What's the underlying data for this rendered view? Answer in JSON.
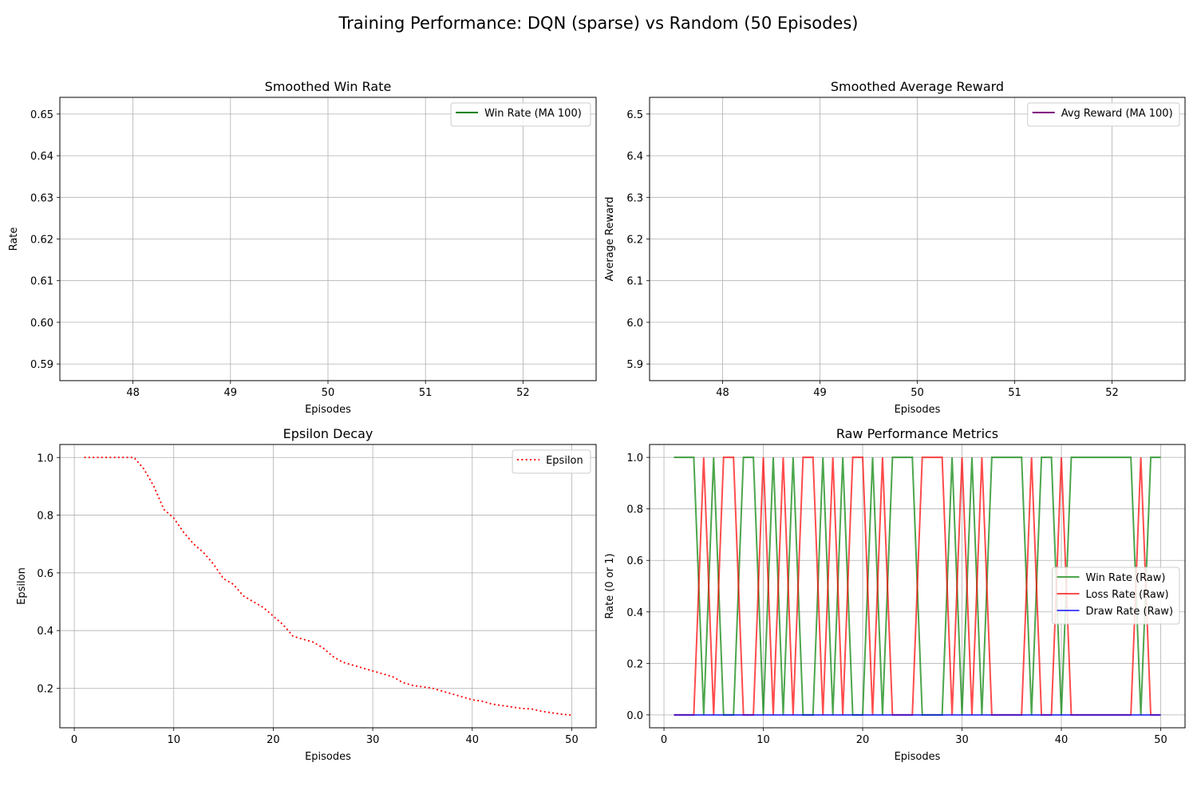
{
  "figure": {
    "title": "Training Performance: DQN (sparse) vs Random (50 Episodes)"
  },
  "chart_data": [
    {
      "id": "win-rate",
      "type": "line",
      "title": "Smoothed Win Rate",
      "xlabel": "Episodes",
      "ylabel": "Rate",
      "xlim": [
        47.25,
        52.75
      ],
      "ylim": [
        0.586,
        0.654
      ],
      "xticks": [
        48,
        49,
        50,
        51,
        52
      ],
      "yticks": [
        0.59,
        0.6,
        0.61,
        0.62,
        0.63,
        0.64,
        0.65
      ],
      "grid": true,
      "legend_position": "top-right",
      "series": [
        {
          "name": "Win Rate (MA 100)",
          "color": "#008000",
          "style": "solid",
          "x": [],
          "values": []
        }
      ]
    },
    {
      "id": "avg-reward",
      "type": "line",
      "title": "Smoothed Average Reward",
      "xlabel": "Episodes",
      "ylabel": "Average Reward",
      "xlim": [
        47.25,
        52.75
      ],
      "ylim": [
        5.86,
        6.54
      ],
      "xticks": [
        48,
        49,
        50,
        51,
        52
      ],
      "yticks": [
        5.9,
        6.0,
        6.1,
        6.2,
        6.3,
        6.4,
        6.5
      ],
      "grid": true,
      "legend_position": "top-right",
      "series": [
        {
          "name": "Avg Reward (MA 100)",
          "color": "#800080",
          "style": "solid",
          "x": [],
          "values": []
        }
      ]
    },
    {
      "id": "epsilon",
      "type": "line",
      "title": "Epsilon Decay",
      "xlabel": "Episodes",
      "ylabel": "Epsilon",
      "xlim": [
        -1.45,
        52.45
      ],
      "ylim": [
        0.063,
        1.045
      ],
      "xticks": [
        0,
        10,
        20,
        30,
        40,
        50
      ],
      "yticks": [
        0.2,
        0.4,
        0.6,
        0.8,
        1.0
      ],
      "grid": true,
      "legend_position": "top-right",
      "series": [
        {
          "name": "Epsilon",
          "color": "#ff0000",
          "style": "dotted",
          "x": [
            1,
            2,
            3,
            4,
            5,
            6,
            7,
            8,
            9,
            10,
            11,
            12,
            13,
            14,
            15,
            16,
            17,
            18,
            19,
            20,
            21,
            22,
            23,
            24,
            25,
            26,
            27,
            28,
            29,
            30,
            31,
            32,
            33,
            34,
            35,
            36,
            37,
            38,
            39,
            40,
            41,
            42,
            43,
            44,
            45,
            46,
            47,
            48,
            49,
            50
          ],
          "values": [
            1.0,
            1.0,
            1.0,
            1.0,
            1.0,
            1.0,
            0.96,
            0.9,
            0.82,
            0.79,
            0.74,
            0.7,
            0.67,
            0.63,
            0.58,
            0.56,
            0.52,
            0.5,
            0.48,
            0.45,
            0.42,
            0.38,
            0.37,
            0.36,
            0.34,
            0.31,
            0.29,
            0.28,
            0.27,
            0.26,
            0.25,
            0.24,
            0.22,
            0.21,
            0.205,
            0.2,
            0.19,
            0.18,
            0.17,
            0.16,
            0.155,
            0.145,
            0.14,
            0.135,
            0.13,
            0.128,
            0.12,
            0.115,
            0.11,
            0.107
          ]
        }
      ]
    },
    {
      "id": "raw-metrics",
      "type": "line",
      "title": "Raw Performance Metrics",
      "xlabel": "Episodes",
      "ylabel": "Rate (0 or 1)",
      "xlim": [
        -1.45,
        52.45
      ],
      "ylim": [
        -0.05,
        1.05
      ],
      "xticks": [
        0,
        10,
        20,
        30,
        40,
        50
      ],
      "yticks": [
        0.0,
        0.2,
        0.4,
        0.6,
        0.8,
        1.0
      ],
      "grid": true,
      "legend_position": "center-right",
      "series": [
        {
          "name": "Win Rate (Raw)",
          "color": "#008000",
          "style": "solid",
          "x": [
            1,
            2,
            3,
            4,
            5,
            6,
            7,
            8,
            9,
            10,
            11,
            12,
            13,
            14,
            15,
            16,
            17,
            18,
            19,
            20,
            21,
            22,
            23,
            24,
            25,
            26,
            27,
            28,
            29,
            30,
            31,
            32,
            33,
            34,
            35,
            36,
            37,
            38,
            39,
            40,
            41,
            42,
            43,
            44,
            45,
            46,
            47,
            48,
            49,
            50
          ],
          "values": [
            1,
            1,
            1,
            0,
            1,
            0,
            0,
            1,
            1,
            0,
            1,
            0,
            1,
            0,
            0,
            1,
            0,
            1,
            0,
            0,
            1,
            0,
            1,
            1,
            1,
            0,
            0,
            0,
            1,
            0,
            1,
            0,
            1,
            1,
            1,
            1,
            0,
            1,
            1,
            0,
            1,
            1,
            1,
            1,
            1,
            1,
            1,
            0,
            1,
            1
          ]
        },
        {
          "name": "Loss Rate (Raw)",
          "color": "#ff0000",
          "style": "solid",
          "x": [
            1,
            2,
            3,
            4,
            5,
            6,
            7,
            8,
            9,
            10,
            11,
            12,
            13,
            14,
            15,
            16,
            17,
            18,
            19,
            20,
            21,
            22,
            23,
            24,
            25,
            26,
            27,
            28,
            29,
            30,
            31,
            32,
            33,
            34,
            35,
            36,
            37,
            38,
            39,
            40,
            41,
            42,
            43,
            44,
            45,
            46,
            47,
            48,
            49,
            50
          ],
          "values": [
            0,
            0,
            0,
            1,
            0,
            1,
            1,
            0,
            0,
            1,
            0,
            1,
            0,
            1,
            1,
            0,
            1,
            0,
            1,
            1,
            0,
            1,
            0,
            0,
            0,
            1,
            1,
            1,
            0,
            1,
            0,
            1,
            0,
            0,
            0,
            0,
            1,
            0,
            0,
            1,
            0,
            0,
            0,
            0,
            0,
            0,
            0,
            1,
            0,
            0
          ]
        },
        {
          "name": "Draw Rate (Raw)",
          "color": "#0000ff",
          "style": "solid",
          "x": [
            1,
            2,
            3,
            4,
            5,
            6,
            7,
            8,
            9,
            10,
            11,
            12,
            13,
            14,
            15,
            16,
            17,
            18,
            19,
            20,
            21,
            22,
            23,
            24,
            25,
            26,
            27,
            28,
            29,
            30,
            31,
            32,
            33,
            34,
            35,
            36,
            37,
            38,
            39,
            40,
            41,
            42,
            43,
            44,
            45,
            46,
            47,
            48,
            49,
            50
          ],
          "values": [
            0,
            0,
            0,
            0,
            0,
            0,
            0,
            0,
            0,
            0,
            0,
            0,
            0,
            0,
            0,
            0,
            0,
            0,
            0,
            0,
            0,
            0,
            0,
            0,
            0,
            0,
            0,
            0,
            0,
            0,
            0,
            0,
            0,
            0,
            0,
            0,
            0,
            0,
            0,
            0,
            0,
            0,
            0,
            0,
            0,
            0,
            0,
            0,
            0,
            0
          ]
        }
      ]
    }
  ]
}
